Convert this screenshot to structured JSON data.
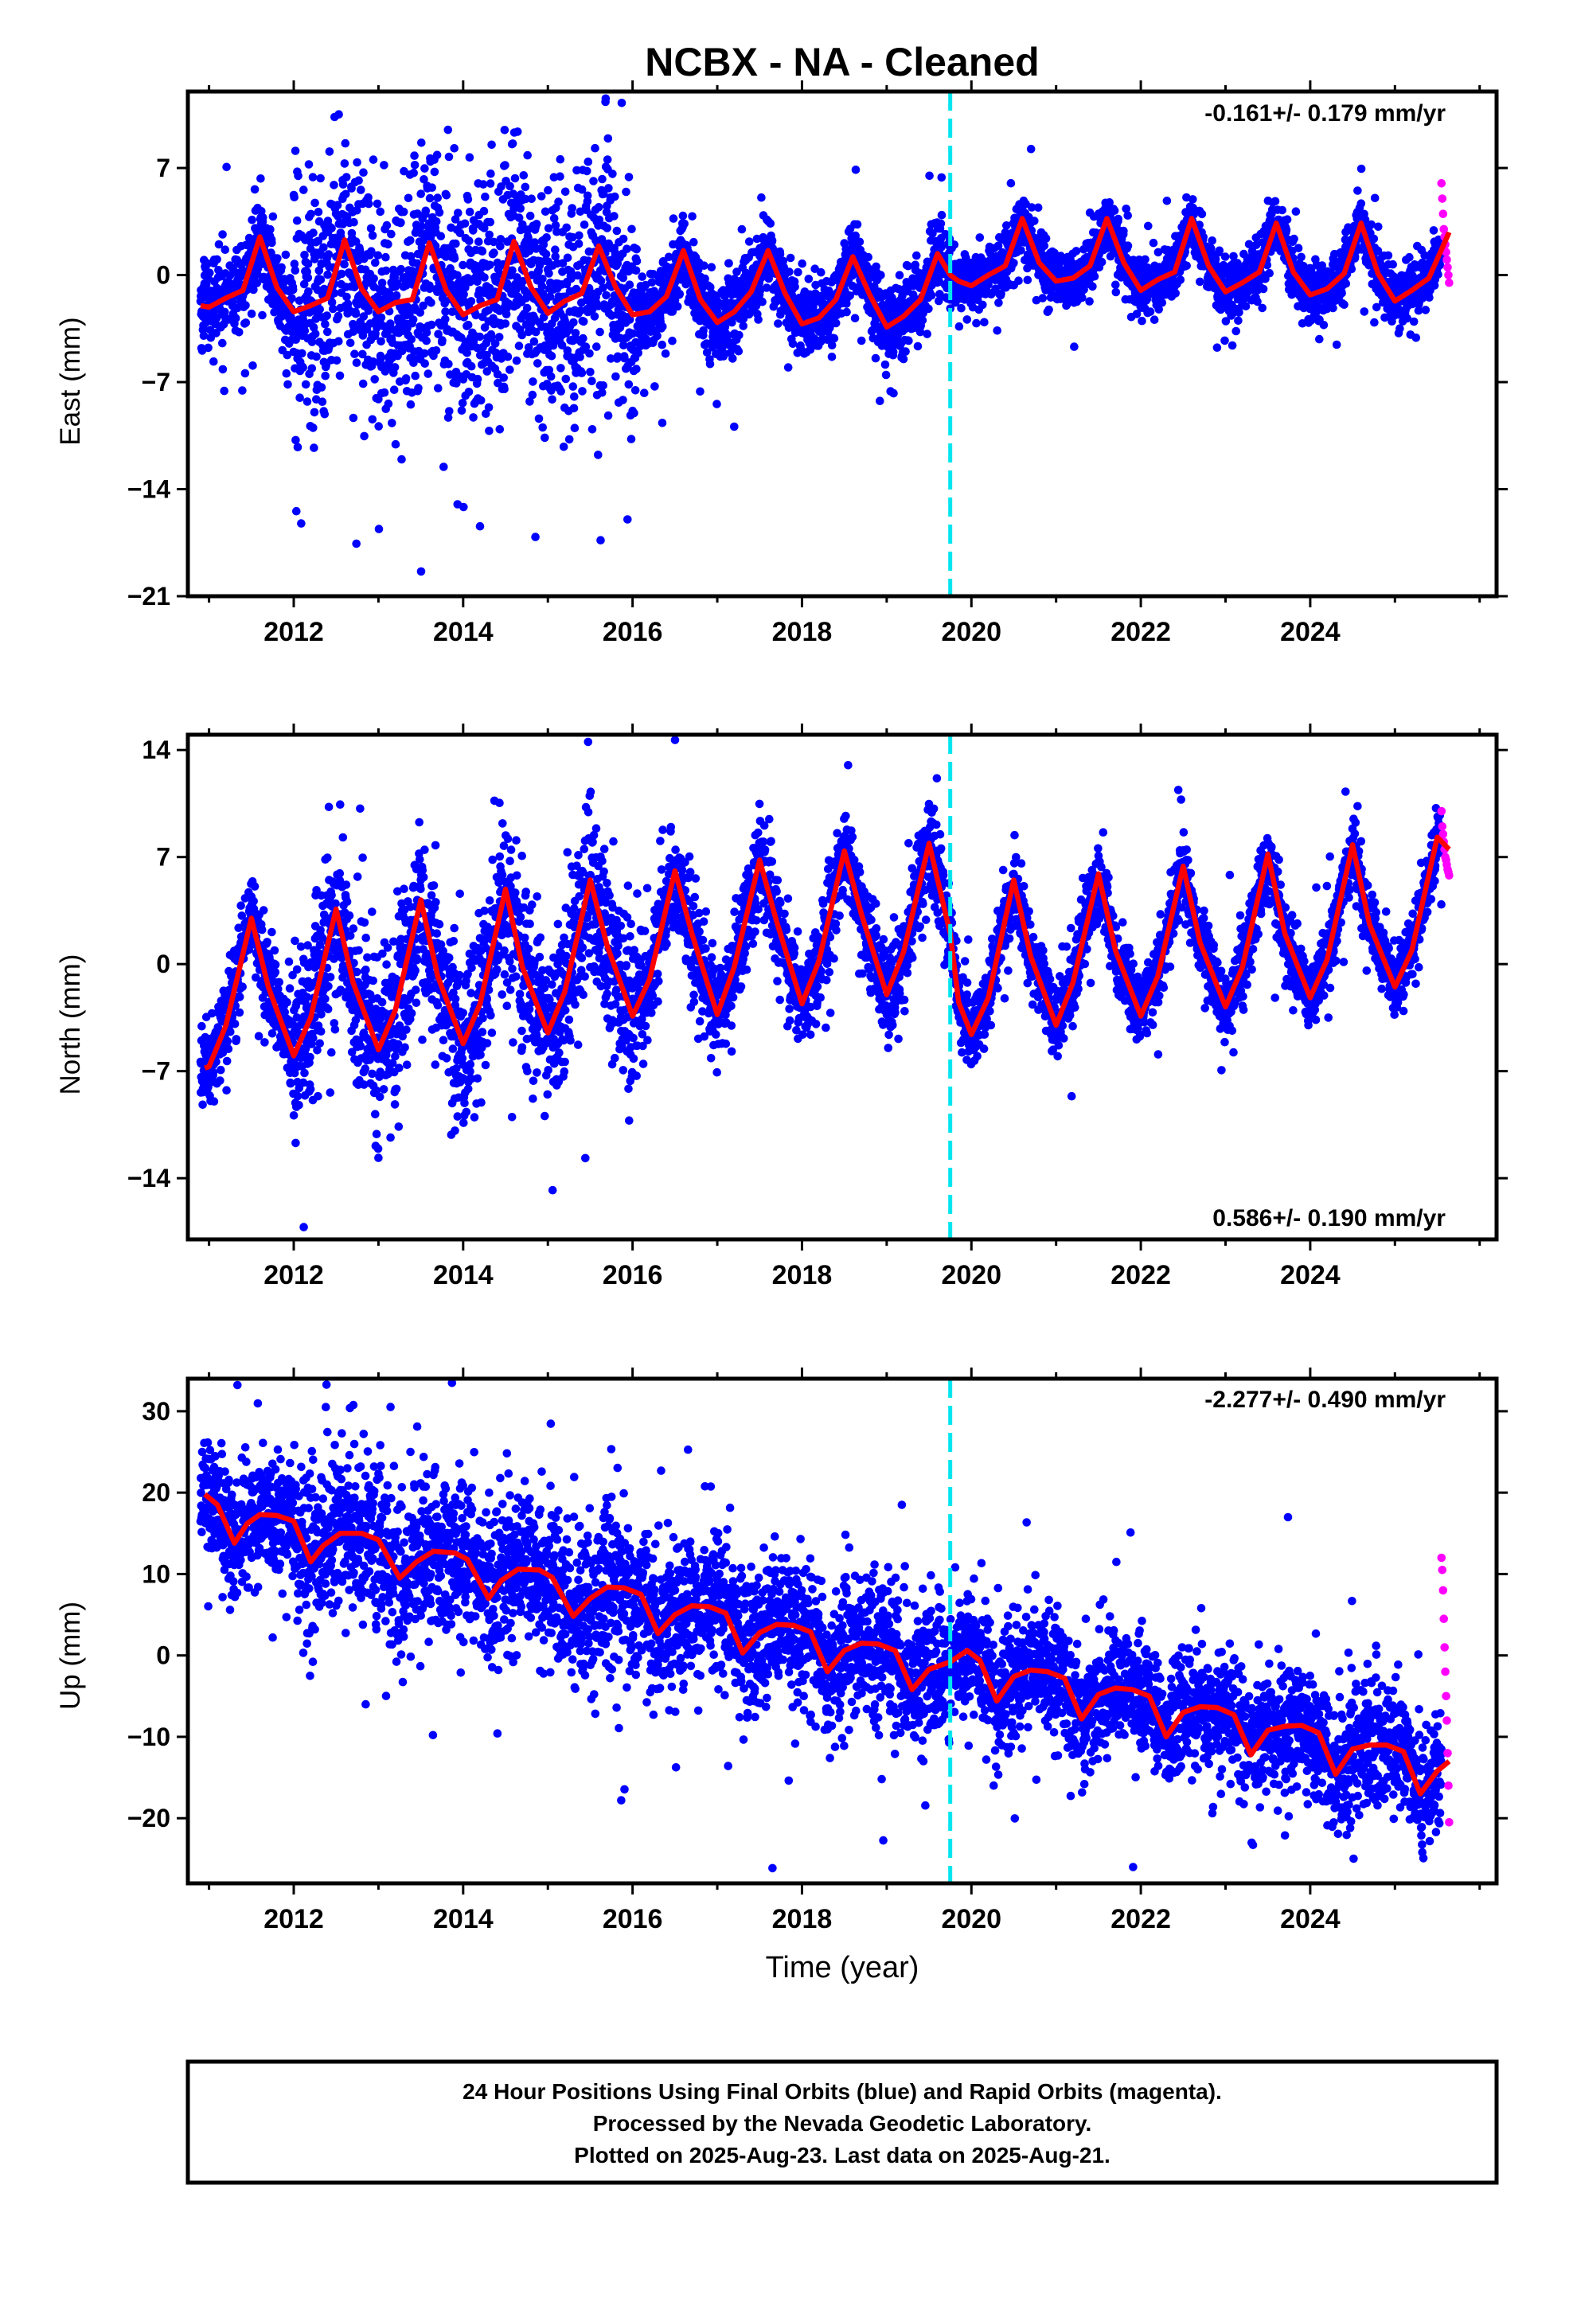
{
  "title": "NCBX  - NA - Cleaned",
  "x_axis_label": "Time (year)",
  "footer": {
    "line1": "24 Hour Positions Using Final Orbits (blue) and Rapid Orbits (magenta).",
    "line2": "Processed by the Nevada Geodetic Laboratory.",
    "line3": "Plotted on 2025-Aug-23. Last data on 2025-Aug-21."
  },
  "colors": {
    "final_orbits": "#0000ff",
    "rapid_orbits": "#ff00ff",
    "model_fit": "#ff0000",
    "equipment_change": "#00e5ee"
  },
  "chart_data": [
    {
      "type": "scatter",
      "component": "East",
      "ylabel": "East (mm)",
      "rate_label": "-0.161+/- 0.179 mm/yr",
      "xlim": [
        2010.75,
        2026.2
      ],
      "ylim": [
        -21,
        12
      ],
      "x_ticks": [
        2012,
        2014,
        2016,
        2018,
        2020,
        2022,
        2024
      ],
      "y_ticks": [
        7,
        0,
        -7,
        -14,
        -21
      ],
      "grid": false,
      "dashed_vline_year": 2019.75,
      "data_start": 2010.9,
      "data_end": 2025.64,
      "rapid_start": 2025.55,
      "model_fit": {
        "years": [
          2010.9,
          2011.0,
          2011.2,
          2011.4,
          2011.6,
          2011.8,
          2012.0,
          2012.2,
          2012.4,
          2012.6,
          2012.8,
          2013.0,
          2013.2,
          2013.4,
          2013.6,
          2013.8,
          2014.0,
          2014.2,
          2014.4,
          2014.6,
          2014.8,
          2015.0,
          2015.2,
          2015.4,
          2015.6,
          2015.8,
          2016.0,
          2016.2,
          2016.4,
          2016.6,
          2016.8,
          2017.0,
          2017.2,
          2017.4,
          2017.6,
          2017.8,
          2018.0,
          2018.2,
          2018.4,
          2018.6,
          2018.8,
          2019.0,
          2019.2,
          2019.4,
          2019.6,
          2019.75,
          2019.85,
          2020.0,
          2020.2,
          2020.4,
          2020.6,
          2020.8,
          2021.0,
          2021.2,
          2021.4,
          2021.6,
          2021.8,
          2022.0,
          2022.2,
          2022.4,
          2022.6,
          2022.8,
          2023.0,
          2023.2,
          2023.4,
          2023.6,
          2023.8,
          2024.0,
          2024.2,
          2024.4,
          2024.6,
          2024.8,
          2025.0,
          2025.2,
          2025.4,
          2025.64
        ],
        "values": [
          -2.0,
          -2.1,
          -1.5,
          -1.0,
          2.5,
          -0.8,
          -2.4,
          -2.0,
          -1.5,
          2.3,
          -0.9,
          -2.4,
          -1.8,
          -1.6,
          2.1,
          -1.0,
          -2.6,
          -2.0,
          -1.6,
          2.2,
          -0.8,
          -2.5,
          -1.7,
          -1.2,
          1.9,
          -0.8,
          -2.6,
          -2.4,
          -1.4,
          1.6,
          -1.6,
          -3.1,
          -2.4,
          -1.1,
          1.6,
          -1.2,
          -3.2,
          -2.8,
          -1.6,
          1.2,
          -1.3,
          -3.4,
          -2.7,
          -1.6,
          1.4,
          0.0,
          -0.4,
          -0.7,
          0.0,
          0.6,
          3.7,
          0.8,
          -0.4,
          -0.2,
          0.6,
          3.7,
          0.8,
          -1.0,
          -0.3,
          0.2,
          3.7,
          0.6,
          -1.1,
          -0.5,
          0.2,
          3.4,
          0.2,
          -1.3,
          -0.9,
          0.1,
          3.4,
          0.1,
          -1.7,
          -1.0,
          -0.2,
          2.8
        ]
      },
      "scatter_model": {
        "seasonal_amplitude": 1.6,
        "annual_peak_fraction": 0.55,
        "outlier_fraction": 0.06,
        "segments": [
          {
            "x": [
              2010.9,
              2012.0
            ],
            "center": -0.3,
            "trend": 0.2,
            "noise": 1.3
          },
          {
            "x": [
              2012.0,
              2016.05
            ],
            "center": 0.2,
            "trend": 0.0,
            "noise": 3.8
          },
          {
            "x": [
              2016.05,
              2019.75
            ],
            "center": -1.9,
            "trend": -0.3,
            "noise": 1.2
          },
          {
            "x": [
              2019.75,
              2025.55
            ],
            "center": 0.4,
            "trend": 0.0,
            "noise": 0.9
          }
        ],
        "rapid_values": [
          6.0,
          5.0,
          4.0,
          3.0,
          2.5,
          2.0,
          1.5,
          1.0,
          0.5,
          0.0,
          -0.5
        ]
      }
    },
    {
      "type": "scatter",
      "component": "North",
      "ylabel": "North (mm)",
      "rate_label": "0.586+/- 0.190 mm/yr",
      "xlim": [
        2010.75,
        2026.2
      ],
      "ylim": [
        -18,
        15
      ],
      "x_ticks": [
        2012,
        2014,
        2016,
        2018,
        2020,
        2022,
        2024
      ],
      "y_ticks": [
        14,
        7,
        0,
        -7,
        -14
      ],
      "grid": false,
      "dashed_vline_year": 2019.75,
      "data_start": 2010.9,
      "data_end": 2025.64,
      "rapid_start": 2025.55,
      "model_fit": {
        "years": [
          2010.95,
          2011.0,
          2011.2,
          2011.5,
          2011.7,
          2012.0,
          2012.2,
          2012.5,
          2012.7,
          2013.0,
          2013.2,
          2013.5,
          2013.7,
          2014.0,
          2014.2,
          2014.5,
          2014.7,
          2015.0,
          2015.2,
          2015.5,
          2015.7,
          2016.0,
          2016.2,
          2016.5,
          2016.7,
          2017.0,
          2017.2,
          2017.5,
          2017.7,
          2018.0,
          2018.2,
          2018.5,
          2018.7,
          2019.0,
          2019.2,
          2019.5,
          2019.75,
          2019.85,
          2020.0,
          2020.2,
          2020.5,
          2020.7,
          2021.0,
          2021.2,
          2021.5,
          2021.7,
          2022.0,
          2022.2,
          2022.5,
          2022.7,
          2023.0,
          2023.2,
          2023.5,
          2023.7,
          2024.0,
          2024.2,
          2024.5,
          2024.7,
          2025.0,
          2025.2,
          2025.5,
          2025.64
        ],
        "values": [
          -6.8,
          -6.7,
          -4.0,
          3.0,
          -1.5,
          -6.0,
          -3.5,
          3.6,
          -1.2,
          -5.6,
          -3.0,
          4.2,
          -0.8,
          -5.2,
          -2.6,
          4.9,
          -0.2,
          -4.5,
          -1.8,
          5.5,
          1.2,
          -3.4,
          -1.0,
          6.1,
          2.0,
          -3.3,
          -0.2,
          6.8,
          2.8,
          -2.6,
          0.2,
          7.4,
          3.3,
          -2.0,
          0.8,
          7.9,
          2.0,
          -2.5,
          -4.6,
          -2.2,
          5.5,
          0.5,
          -4.0,
          -1.2,
          5.9,
          0.9,
          -3.4,
          -0.8,
          6.4,
          1.4,
          -2.8,
          -0.2,
          7.2,
          2.0,
          -2.2,
          0.3,
          7.8,
          2.6,
          -1.5,
          0.9,
          8.3,
          7.5
        ]
      },
      "scatter_model": {
        "seasonal_amplitude": 5.0,
        "annual_peak_fraction": 0.5,
        "outlier_fraction": 0.06,
        "segments": [
          {
            "x": [
              2010.9,
              2012.0
            ],
            "center": -1.2,
            "trend": 0.4,
            "noise": 1.4
          },
          {
            "x": [
              2012.0,
              2016.15
            ],
            "center": -1.8,
            "trend": 0.3,
            "noise": 2.6
          },
          {
            "x": [
              2016.15,
              2019.75
            ],
            "center": 2.2,
            "trend": 0.3,
            "noise": 1.5
          },
          {
            "x": [
              2019.75,
              2025.55
            ],
            "center": 0.6,
            "trend": 0.5,
            "noise": 1.1
          }
        ],
        "rapid_values": [
          10.0,
          9.0,
          8.5,
          8.0,
          7.5,
          7.0,
          6.8,
          6.5,
          6.2,
          6.0,
          5.8
        ]
      }
    },
    {
      "type": "scatter",
      "component": "Up",
      "ylabel": "Up (mm)",
      "rate_label": "-2.277+/- 0.490 mm/yr",
      "xlim": [
        2010.75,
        2026.2
      ],
      "ylim": [
        -28,
        34
      ],
      "x_ticks": [
        2012,
        2014,
        2016,
        2018,
        2020,
        2022,
        2024
      ],
      "y_ticks": [
        30,
        20,
        10,
        0,
        -10,
        -20
      ],
      "grid": false,
      "dashed_vline_year": 2019.75,
      "data_start": 2010.9,
      "data_end": 2025.64,
      "rapid_start": 2025.55,
      "model_fit": {
        "years": [
          2010.95,
          2011.1,
          2011.3,
          2011.45,
          2011.6,
          2011.8,
          2012.0,
          2012.2,
          2012.35,
          2012.55,
          2012.8,
          2013.0,
          2013.25,
          2013.45,
          2013.65,
          2013.9,
          2014.05,
          2014.3,
          2014.45,
          2014.65,
          2014.9,
          2015.05,
          2015.3,
          2015.5,
          2015.7,
          2015.9,
          2016.1,
          2016.3,
          2016.5,
          2016.7,
          2016.9,
          2017.1,
          2017.3,
          2017.5,
          2017.7,
          2017.9,
          2018.1,
          2018.3,
          2018.5,
          2018.7,
          2018.9,
          2019.1,
          2019.3,
          2019.5,
          2019.75,
          2019.95,
          2020.1,
          2020.3,
          2020.5,
          2020.7,
          2020.9,
          2021.1,
          2021.3,
          2021.5,
          2021.7,
          2021.9,
          2022.1,
          2022.3,
          2022.5,
          2022.7,
          2022.9,
          2023.1,
          2023.3,
          2023.5,
          2023.7,
          2023.9,
          2024.1,
          2024.3,
          2024.5,
          2024.7,
          2024.9,
          2025.1,
          2025.3,
          2025.5,
          2025.64
        ],
        "values": [
          19.8,
          18.5,
          13.8,
          16.2,
          17.3,
          17.2,
          16.5,
          11.5,
          13.5,
          15.0,
          15.0,
          14.2,
          9.5,
          11.5,
          12.8,
          12.6,
          11.8,
          7.0,
          9.2,
          10.6,
          10.5,
          9.6,
          4.8,
          7.0,
          8.4,
          8.3,
          7.5,
          2.7,
          5.0,
          6.1,
          6.0,
          5.2,
          0.3,
          2.8,
          3.8,
          3.7,
          2.9,
          -2.0,
          0.6,
          1.5,
          1.4,
          0.6,
          -4.2,
          -1.7,
          -0.8,
          0.6,
          -0.6,
          -5.6,
          -2.6,
          -1.8,
          -2.0,
          -2.8,
          -7.8,
          -4.8,
          -4.0,
          -4.2,
          -5.0,
          -10.0,
          -7.0,
          -6.3,
          -6.4,
          -7.3,
          -12.2,
          -9.2,
          -8.7,
          -8.6,
          -9.5,
          -14.6,
          -11.5,
          -11.0,
          -11.0,
          -11.8,
          -17.0,
          -14.2,
          -13.0
        ]
      },
      "scatter_model": {
        "seasonal_amplitude": 2.0,
        "annual_peak_fraction": 0.6,
        "outlier_fraction": 0.05,
        "segments": [
          {
            "x": [
              2010.9,
              2012.0
            ],
            "center": 18.0,
            "trend": -1.0,
            "noise": 3.5
          },
          {
            "x": [
              2012.0,
              2016.05
            ],
            "center": 16.0,
            "trend": -2.2,
            "noise": 4.8
          },
          {
            "x": [
              2016.05,
              2019.75
            ],
            "center": 7.0,
            "trend": -2.4,
            "noise": 4.2
          },
          {
            "x": [
              2019.75,
              2025.55
            ],
            "center": -1.0,
            "trend": -2.3,
            "noise": 3.6
          }
        ],
        "rapid_values": [
          12.0,
          10.5,
          8.0,
          4.5,
          1.0,
          -2.0,
          -5.0,
          -8.0,
          -12.0,
          -16.0,
          -20.5
        ]
      }
    }
  ]
}
